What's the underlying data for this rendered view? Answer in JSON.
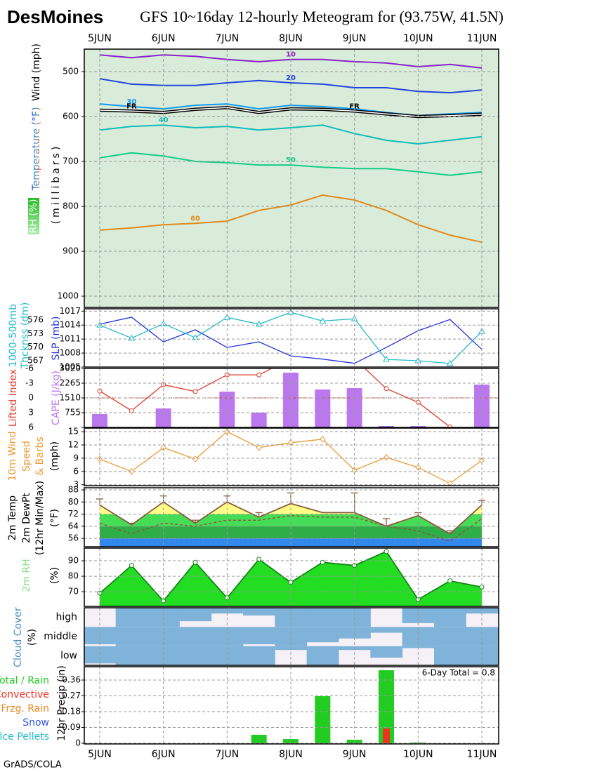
{
  "header": {
    "station": "DesMoines",
    "title": "GFS 10~16day 12-hourly Meteogram for (93.75W, 41.5N)",
    "credit": "GrADS/COLA"
  },
  "time_axis": {
    "labels": [
      "5JUN",
      "6JUN",
      "7JUN",
      "8JUN",
      "9JUN",
      "10JUN",
      "11JUN"
    ]
  },
  "chart_data": [
    {
      "type": "contour",
      "axis_labels": [
        "Wind (mph)",
        "Temperature (°F)",
        "(millibars)",
        "RH (%)"
      ],
      "ylim": [
        1000,
        450
      ],
      "yticks": [
        500,
        600,
        700,
        800,
        900,
        1000
      ],
      "grid": true,
      "background": "#d9ecd9",
      "series": [
        {
          "name": "10",
          "color": "#8822cc",
          "values": [
            463,
            469,
            463,
            466,
            473,
            478,
            473,
            473,
            478,
            481,
            489,
            484,
            492
          ]
        },
        {
          "name": "20",
          "color": "#2244dd",
          "values": [
            516,
            528,
            531,
            531,
            525,
            520,
            525,
            528,
            536,
            536,
            544,
            547,
            541
          ]
        },
        {
          "name": "30",
          "color": "#1199ee",
          "values": [
            572,
            578,
            583,
            575,
            572,
            583,
            575,
            578,
            583,
            591,
            598,
            594,
            591
          ]
        },
        {
          "name": "FR",
          "color": "#000000",
          "style": "double",
          "values": [
            586,
            588,
            591,
            584,
            580,
            591,
            583,
            584,
            588,
            594,
            600,
            598,
            595
          ]
        },
        {
          "name": "40",
          "color": "#11bbbb",
          "values": [
            630,
            622,
            619,
            625,
            622,
            630,
            625,
            619,
            638,
            653,
            661,
            653,
            645
          ]
        },
        {
          "name": "50",
          "color": "#11cc88",
          "values": [
            692,
            681,
            688,
            700,
            703,
            708,
            708,
            713,
            716,
            716,
            723,
            731,
            723
          ]
        },
        {
          "name": "60",
          "color": "#e08a1e",
          "values": [
            853,
            848,
            841,
            838,
            833,
            809,
            797,
            775,
            786,
            809,
            841,
            864,
            880
          ]
        }
      ]
    },
    {
      "type": "line",
      "axis_labels": [
        "1000-500mb",
        "Thcknss (dm)",
        "SLP (mb)"
      ],
      "ylim": [
        1005,
        1017.5
      ],
      "yticks": [
        1005,
        1008,
        1011,
        1014,
        1017
      ],
      "y2lim": [
        565.6,
        578.5
      ],
      "y2ticks": [
        567,
        570,
        573,
        576
      ],
      "grid": true,
      "series": [
        {
          "color": "#2233dd",
          "values": [
            1014.2,
            1015.7,
            1010.4,
            1013,
            1009.2,
            1010.4,
            1007.4,
            1006.7,
            1005.8,
            1009.2,
            1012.8,
            1015.2,
            1008.8
          ]
        },
        {
          "color": "#22bbcc",
          "axis": "y2",
          "marker": "triangle",
          "values": [
            574.9,
            572,
            575.2,
            572.1,
            576.6,
            575.1,
            577.7,
            575.8,
            576.3,
            567.3,
            567,
            566.4,
            573.5
          ]
        }
      ]
    },
    {
      "type": "bar",
      "axis_labels": [
        "Lifted Index",
        "CAPE (J/kg)"
      ],
      "ylim": [
        6,
        -6
      ],
      "yticks": [
        -6,
        -3,
        0,
        3,
        6
      ],
      "y2lim": [
        0,
        3020
      ],
      "y2ticks": [
        755,
        1510,
        2265,
        3020
      ],
      "grid": true,
      "series": [
        {
          "type": "bar",
          "axis": "y2",
          "color": "#bb77ee",
          "values": [
            683,
            0,
            971,
            0,
            1834,
            755,
            2804,
            1941,
            2013,
            72,
            72,
            0,
            2193
          ]
        },
        {
          "type": "line",
          "color": "#e03a2a",
          "marker": "circle",
          "values": [
            -1.4,
            2.6,
            -2.7,
            -1.3,
            -4.7,
            -4.7,
            -8,
            -9,
            -8,
            -1.9,
            0.9,
            5.9,
            9
          ]
        }
      ]
    },
    {
      "type": "line",
      "axis_labels": [
        "10m Wind",
        "Speed",
        "& Barbs",
        "(mph)"
      ],
      "ylim": [
        2.8,
        15.8
      ],
      "yticks": [
        3,
        6,
        9,
        12,
        15
      ],
      "grid": true,
      "series": [
        {
          "color": "#ee9933",
          "marker": "diamond",
          "values": [
            8.8,
            6,
            11.4,
            8.8,
            15,
            11.4,
            12.5,
            13.3,
            6.3,
            9.2,
            6.9,
            3.3,
            8.5
          ]
        }
      ]
    },
    {
      "type": "area",
      "axis_labels": [
        "2m Temp",
        "2m DewPt",
        "(12hr Min/Max)",
        "(°F)"
      ],
      "ylim": [
        50.5,
        89.4
      ],
      "yticks": [
        56,
        64,
        72,
        80,
        88
      ],
      "grid": true,
      "band_colors": [
        "#3388ee",
        "#2fae48",
        "#44dd55",
        "#ffff88"
      ],
      "series": [
        {
          "color": "#8b5a3c",
          "values": [
            78,
            65,
            80,
            66,
            80,
            70,
            79,
            73,
            73,
            64,
            71,
            59,
            78
          ]
        },
        {
          "type": "whisker",
          "color": "#8b5a3c",
          "values": [
            82,
            66,
            84,
            68,
            84,
            73,
            86,
            73,
            86,
            69,
            73,
            61,
            81
          ]
        },
        {
          "color": "#8b5a3c",
          "dash": true,
          "values": [
            66,
            59,
            66,
            64,
            68,
            68,
            71,
            70,
            70,
            64,
            61,
            54,
            69
          ]
        }
      ]
    },
    {
      "type": "area",
      "axis_labels": [
        "2m RH",
        "(%)"
      ],
      "ylim": [
        60.5,
        98.2
      ],
      "yticks": [
        70,
        80,
        90
      ],
      "grid": true,
      "series": [
        {
          "color": "#22dd22",
          "line_color": "#118811",
          "marker": "circle",
          "values": [
            69,
            87,
            64,
            89,
            66,
            91,
            76,
            89,
            87,
            96,
            65,
            77,
            73
          ]
        }
      ]
    },
    {
      "type": "cloud",
      "axis_labels": [
        "Cloud Cover",
        "(%)"
      ],
      "color": "#7fb3da",
      "background": "#f6f1f6",
      "series": [
        {
          "name": "high",
          "values": [
            0,
            100,
            100,
            70,
            30,
            40,
            100,
            100,
            100,
            0,
            80,
            100,
            30
          ]
        },
        {
          "name": "middle",
          "values": [
            90,
            100,
            100,
            100,
            100,
            90,
            100,
            80,
            60,
            30,
            100,
            100,
            100
          ]
        },
        {
          "name": "low",
          "values": [
            90,
            100,
            100,
            100,
            100,
            100,
            20,
            100,
            20,
            60,
            10,
            100,
            100
          ]
        }
      ]
    },
    {
      "type": "bar",
      "axis_labels": [
        "12hr Precip (in)"
      ],
      "annotation": "6-Day Total = 0.8",
      "ylim": [
        0,
        0.436
      ],
      "yticks": [
        0,
        0.09,
        0.18,
        0.27,
        0.36
      ],
      "grid": true,
      "series": [
        {
          "name": "Total / Rain",
          "color": "#22cc22",
          "values": [
            0,
            0,
            0,
            0,
            0,
            0.048,
            0.024,
            0.268,
            0.02,
            0.416,
            0.004,
            0,
            0
          ]
        },
        {
          "name": "Convective",
          "color": "#ee3322",
          "values": [
            0,
            0,
            0,
            0,
            0,
            0,
            0,
            0,
            0,
            0.084,
            0,
            0,
            0
          ]
        },
        {
          "name": "Frzg. Rain",
          "color": "#ee8822",
          "values": [
            0,
            0,
            0,
            0,
            0,
            0,
            0,
            0,
            0,
            0,
            0,
            0,
            0
          ]
        },
        {
          "name": "Snow",
          "color": "#3355ee",
          "values": [
            0,
            0,
            0,
            0,
            0,
            0,
            0,
            0,
            0,
            0,
            0,
            0,
            0
          ]
        },
        {
          "name": "Ice Pellets",
          "color": "#22bbcc",
          "values": [
            0,
            0,
            0,
            0,
            0,
            0,
            0,
            0,
            0,
            0,
            0,
            0,
            0
          ]
        }
      ]
    }
  ]
}
